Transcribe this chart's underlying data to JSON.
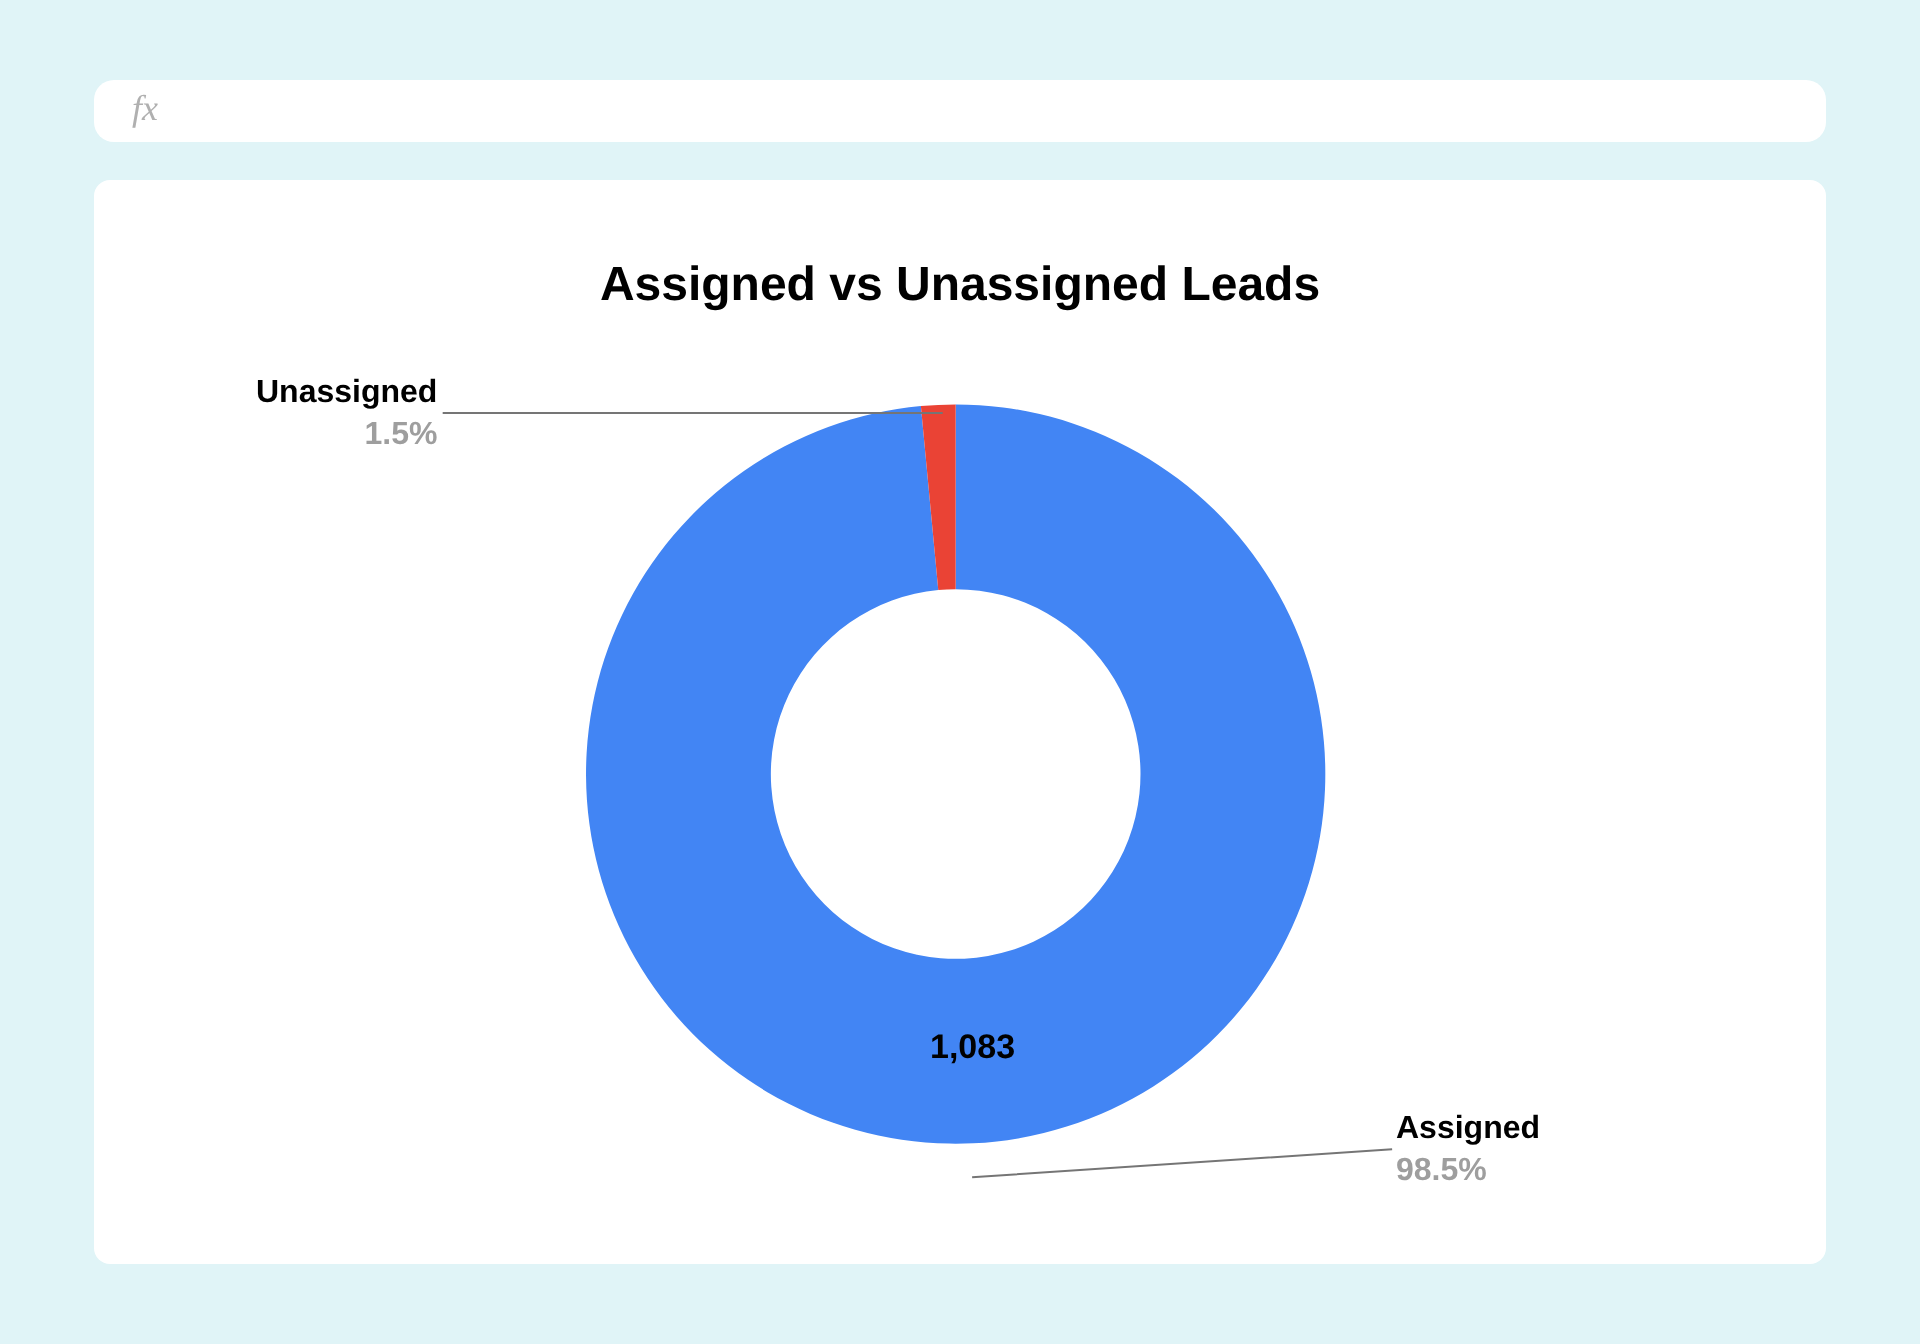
{
  "chart_data": {
    "type": "donut",
    "title": "Assigned vs Unassigned Leads",
    "categories": [
      "Assigned",
      "Unassigned"
    ],
    "values": [
      98.5,
      1.5
    ],
    "colors": [
      "#4285f4",
      "#ea4335"
    ],
    "value_labels": [
      "98.5%",
      "1.5%"
    ],
    "annotations": [
      "1,083",
      "fx"
    ],
    "legend": false
  }
}
